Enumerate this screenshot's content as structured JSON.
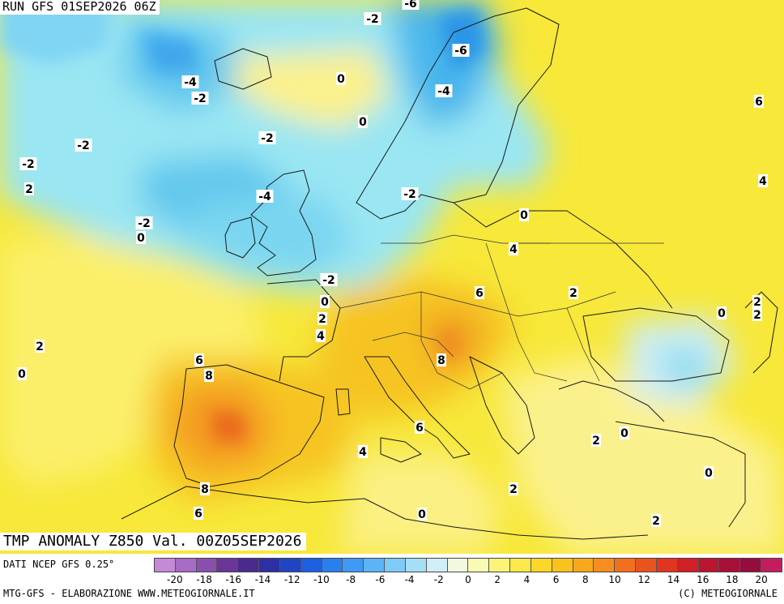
{
  "header": {
    "run": "RUN GFS 01SEP2026 06Z"
  },
  "field_title": "TMP ANOMALY Z850 Val. 00Z05SEP2026",
  "footer": {
    "dataset": "DATI NCEP GFS 0.25°",
    "credit_left": "MTG-GFS - ELABORAZIONE WWW.METEOGIORNALE.IT",
    "credit_right": "(C) METEOGIORNALE"
  },
  "colorbar": {
    "colors": [
      "#c48ad6",
      "#a66bc4",
      "#8a4fae",
      "#6b3596",
      "#4a2a8c",
      "#2e2fa3",
      "#1f45c4",
      "#1d5fe0",
      "#2a7fef",
      "#3f99f5",
      "#5cb4f8",
      "#7ecbf6",
      "#a6def5",
      "#cfeef5",
      "#f2f9e0",
      "#fafab4",
      "#fbf37a",
      "#fbe84a",
      "#fbd727",
      "#fbc21e",
      "#f9a81e",
      "#f78d1f",
      "#f2701d",
      "#ea531d",
      "#e0361f",
      "#d01f25",
      "#bb1530",
      "#a80f38",
      "#960c3c",
      "#c21d5e"
    ],
    "tick_labels": [
      "-20",
      "-18",
      "-16",
      "-14",
      "-12",
      "-10",
      "-8",
      "-6",
      "-4",
      "-2",
      "0",
      "2",
      "4",
      "6",
      "8",
      "10",
      "12",
      "14",
      "16",
      "18",
      "20"
    ]
  },
  "map": {
    "labels": [
      {
        "text": "-6"
      },
      {
        "text": "-2"
      },
      {
        "text": "-6"
      },
      {
        "text": "-4"
      },
      {
        "text": "-2"
      },
      {
        "text": "0"
      },
      {
        "text": "-4"
      },
      {
        "text": "0"
      },
      {
        "text": "-2"
      },
      {
        "text": "-2"
      },
      {
        "text": "-2"
      },
      {
        "text": "2"
      },
      {
        "text": "-4"
      },
      {
        "text": "-2"
      },
      {
        "text": "-2"
      },
      {
        "text": "0"
      },
      {
        "text": "0"
      },
      {
        "text": "-2"
      },
      {
        "text": "0"
      },
      {
        "text": "2"
      },
      {
        "text": "4"
      },
      {
        "text": "4"
      },
      {
        "text": "6"
      },
      {
        "text": "2"
      },
      {
        "text": "6"
      },
      {
        "text": "4"
      },
      {
        "text": "0"
      },
      {
        "text": "2"
      },
      {
        "text": "2"
      },
      {
        "text": "2"
      },
      {
        "text": "0"
      },
      {
        "text": "6"
      },
      {
        "text": "8"
      },
      {
        "text": "8"
      },
      {
        "text": "6"
      },
      {
        "text": "4"
      },
      {
        "text": "0"
      },
      {
        "text": "2"
      },
      {
        "text": "0"
      },
      {
        "text": "2"
      },
      {
        "text": "8"
      },
      {
        "text": "6"
      },
      {
        "text": "0"
      },
      {
        "text": "2"
      }
    ]
  }
}
